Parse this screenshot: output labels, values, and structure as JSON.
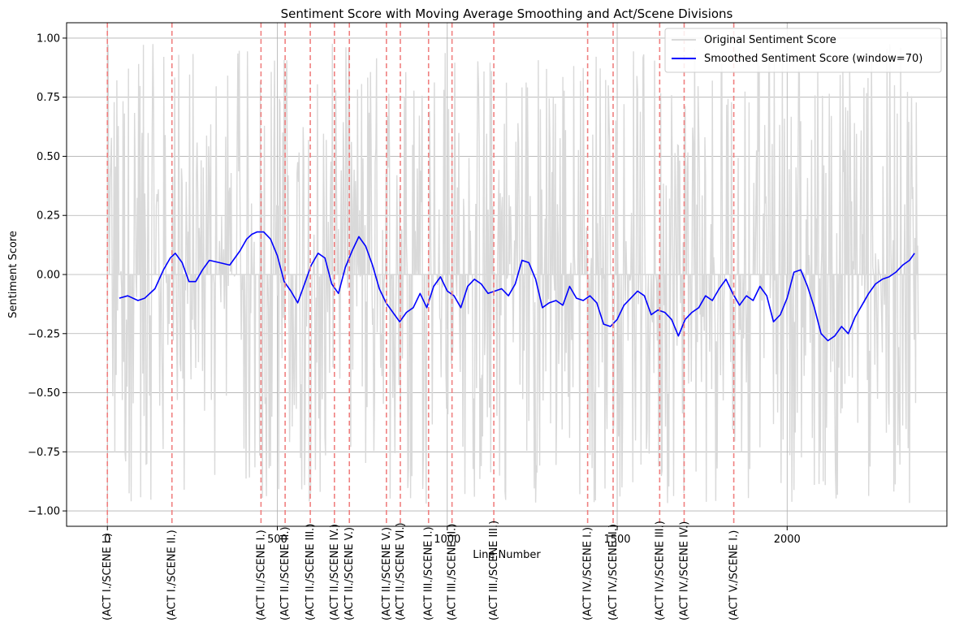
{
  "chart_data": {
    "type": "line",
    "title": "Sentiment Score with Moving Average Smoothing and Act/Scene Divisions",
    "xlabel": "Line Number",
    "ylabel": "Sentiment Score",
    "xlim": [
      -120,
      2470
    ],
    "ylim": [
      -1.065,
      1.065
    ],
    "x_ticks": [
      0,
      500,
      1000,
      1500,
      2000
    ],
    "y_ticks": [
      -1.0,
      -0.75,
      -0.5,
      -0.25,
      0.0,
      0.25,
      0.5,
      0.75,
      1.0
    ],
    "x_tick_labels": [
      "0",
      "500",
      "1000",
      "1500",
      "2000"
    ],
    "y_tick_labels": [
      "−1.00",
      "−0.75",
      "−0.50",
      "−0.25",
      "0.00",
      "0.25",
      "0.50",
      "0.75",
      "1.00"
    ],
    "grid": true,
    "legend_position": "top-right",
    "colors": {
      "original": "#d9d9d9",
      "smoothed": "#0000ff",
      "divider": "#f08080"
    },
    "series": [
      {
        "name": "Original Sentiment Score",
        "style": "noisy line, values mostly in range -0.97 to 0.98",
        "x_range": [
          0,
          2386
        ],
        "y_range": [
          -0.97,
          0.98
        ]
      },
      {
        "name": "Smoothed Sentiment Score (window=70)",
        "x": [
          35,
          60,
          90,
          110,
          140,
          165,
          185,
          200,
          220,
          240,
          260,
          280,
          300,
          330,
          360,
          390,
          410,
          425,
          440,
          460,
          480,
          500,
          520,
          540,
          560,
          580,
          600,
          620,
          640,
          660,
          680,
          700,
          720,
          740,
          760,
          780,
          800,
          820,
          840,
          860,
          880,
          900,
          920,
          940,
          960,
          980,
          1000,
          1020,
          1040,
          1060,
          1080,
          1100,
          1120,
          1140,
          1160,
          1180,
          1200,
          1220,
          1240,
          1260,
          1280,
          1300,
          1320,
          1340,
          1360,
          1380,
          1400,
          1420,
          1440,
          1460,
          1480,
          1500,
          1520,
          1540,
          1560,
          1580,
          1600,
          1620,
          1640,
          1660,
          1680,
          1700,
          1720,
          1740,
          1760,
          1780,
          1800,
          1820,
          1840,
          1860,
          1880,
          1900,
          1920,
          1940,
          1960,
          1980,
          2000,
          2020,
          2040,
          2060,
          2080,
          2100,
          2120,
          2140,
          2160,
          2180,
          2200,
          2220,
          2240,
          2260,
          2280,
          2300,
          2320,
          2340,
          2360,
          2375
        ],
        "y": [
          -0.1,
          -0.09,
          -0.11,
          -0.1,
          -0.06,
          0.02,
          0.07,
          0.09,
          0.05,
          -0.03,
          -0.03,
          0.02,
          0.06,
          0.05,
          0.04,
          0.1,
          0.15,
          0.17,
          0.18,
          0.18,
          0.15,
          0.08,
          -0.03,
          -0.07,
          -0.12,
          -0.04,
          0.04,
          0.09,
          0.07,
          -0.04,
          -0.08,
          0.03,
          0.1,
          0.16,
          0.12,
          0.04,
          -0.06,
          -0.12,
          -0.16,
          -0.2,
          -0.16,
          -0.14,
          -0.08,
          -0.14,
          -0.05,
          -0.01,
          -0.07,
          -0.09,
          -0.14,
          -0.05,
          -0.02,
          -0.04,
          -0.08,
          -0.07,
          -0.06,
          -0.09,
          -0.04,
          0.06,
          0.05,
          -0.02,
          -0.14,
          -0.12,
          -0.11,
          -0.13,
          -0.05,
          -0.1,
          -0.11,
          -0.09,
          -0.12,
          -0.21,
          -0.22,
          -0.19,
          -0.13,
          -0.1,
          -0.07,
          -0.09,
          -0.17,
          -0.15,
          -0.16,
          -0.19,
          -0.26,
          -0.19,
          -0.16,
          -0.14,
          -0.09,
          -0.11,
          -0.06,
          -0.02,
          -0.08,
          -0.13,
          -0.09,
          -0.11,
          -0.05,
          -0.09,
          -0.2,
          -0.17,
          -0.1,
          0.01,
          0.02,
          -0.05,
          -0.14,
          -0.25,
          -0.28,
          -0.26,
          -0.22,
          -0.25,
          -0.18,
          -0.13,
          -0.08,
          -0.04,
          -0.02,
          -0.01,
          0.01,
          0.04,
          0.06,
          0.09
        ]
      }
    ],
    "act_scene_divisions": [
      {
        "x": 0,
        "label": "(ACT I./SCENE I.)"
      },
      {
        "x": 190,
        "label": "(ACT I./SCENE II.)"
      },
      {
        "x": 452,
        "label": "(ACT II./SCENE I.)"
      },
      {
        "x": 523,
        "label": "(ACT II./SCENE II.)"
      },
      {
        "x": 597,
        "label": "(ACT II./SCENE III.)"
      },
      {
        "x": 668,
        "label": "(ACT II./SCENE IV.)"
      },
      {
        "x": 712,
        "label": "(ACT II./SCENE V.)"
      },
      {
        "x": 821,
        "label": "(ACT II./SCENE V.)"
      },
      {
        "x": 862,
        "label": "(ACT II./SCENE VI.)"
      },
      {
        "x": 945,
        "label": "(ACT III./SCENE I.)"
      },
      {
        "x": 1014,
        "label": "(ACT III./SCENE II.)"
      },
      {
        "x": 1137,
        "label": "(ACT III./SCENE III.)"
      },
      {
        "x": 1413,
        "label": "(ACT IV./SCENE I.)"
      },
      {
        "x": 1488,
        "label": "(ACT IV./SCENE II.)"
      },
      {
        "x": 1625,
        "label": "(ACT IV./SCENE III.)"
      },
      {
        "x": 1697,
        "label": "(ACT IV./SCENE IV.)"
      },
      {
        "x": 1843,
        "label": "(ACT V./SCENE I.)"
      }
    ]
  }
}
